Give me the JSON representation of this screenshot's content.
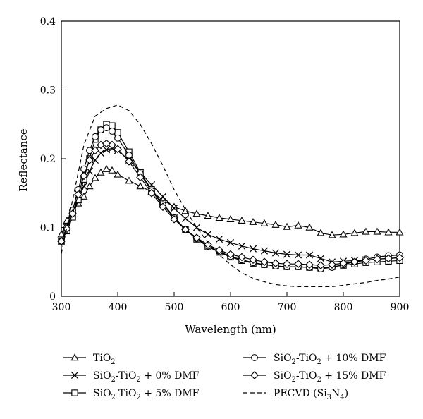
{
  "chart_data": {
    "type": "line",
    "title": "",
    "xlabel": "Wavelength (nm)",
    "ylabel": "Reflectance",
    "xlim": [
      300,
      900
    ],
    "ylim": [
      0,
      0.4
    ],
    "xticks": [
      "300",
      "400",
      "500",
      "600",
      "700",
      "800",
      "900"
    ],
    "yticks": [
      "0",
      "0.1",
      "0.2",
      "0.3",
      "0.4"
    ],
    "grid": false,
    "legend": "below",
    "colors": {
      "line": "#000000"
    },
    "series": [
      {
        "name": "TiO2",
        "legend_main": "TiO",
        "legend_parts": [
          {
            "t": "TiO"
          },
          {
            "t": "2",
            "sub": true
          }
        ],
        "marker": "triangle",
        "dashed": false,
        "x": [
          300,
          310,
          320,
          330,
          340,
          350,
          360,
          370,
          380,
          390,
          400,
          420,
          440,
          460,
          480,
          500,
          520,
          540,
          560,
          580,
          600,
          620,
          640,
          660,
          680,
          700,
          720,
          740,
          760,
          780,
          800,
          820,
          840,
          860,
          880,
          900
        ],
        "y": [
          0.09,
          0.11,
          0.125,
          0.135,
          0.145,
          0.16,
          0.172,
          0.18,
          0.185,
          0.183,
          0.177,
          0.168,
          0.16,
          0.152,
          0.14,
          0.13,
          0.124,
          0.12,
          0.117,
          0.114,
          0.112,
          0.11,
          0.108,
          0.106,
          0.104,
          0.101,
          0.103,
          0.1,
          0.092,
          0.089,
          0.09,
          0.092,
          0.094,
          0.094,
          0.093,
          0.093
        ]
      },
      {
        "name": "SiO2-TiO2 + 0% DMF",
        "legend_parts": [
          {
            "t": "SiO"
          },
          {
            "t": "2",
            "sub": true
          },
          {
            "t": "-TiO"
          },
          {
            "t": "2",
            "sub": true
          },
          {
            "t": " + 0% DMF"
          }
        ],
        "marker": "x",
        "dashed": false,
        "x": [
          300,
          310,
          320,
          330,
          340,
          350,
          360,
          370,
          380,
          390,
          400,
          420,
          440,
          460,
          480,
          500,
          520,
          540,
          560,
          580,
          600,
          620,
          640,
          660,
          680,
          700,
          720,
          740,
          760,
          780,
          800,
          820,
          840,
          860,
          880,
          900
        ],
        "y": [
          0.08,
          0.1,
          0.12,
          0.14,
          0.16,
          0.182,
          0.198,
          0.208,
          0.213,
          0.215,
          0.212,
          0.198,
          0.18,
          0.162,
          0.145,
          0.128,
          0.113,
          0.1,
          0.09,
          0.083,
          0.078,
          0.073,
          0.069,
          0.066,
          0.063,
          0.061,
          0.06,
          0.06,
          0.055,
          0.05,
          0.051,
          0.052,
          0.053,
          0.054,
          0.055,
          0.056
        ]
      },
      {
        "name": "SiO2-TiO2 + 5% DMF",
        "legend_parts": [
          {
            "t": "SiO"
          },
          {
            "t": "2",
            "sub": true
          },
          {
            "t": "-TiO"
          },
          {
            "t": "2",
            "sub": true
          },
          {
            "t": " + 5% DMF"
          }
        ],
        "marker": "square",
        "dashed": false,
        "x": [
          300,
          310,
          320,
          330,
          340,
          350,
          360,
          370,
          380,
          390,
          400,
          420,
          440,
          460,
          480,
          500,
          520,
          540,
          560,
          580,
          600,
          620,
          640,
          660,
          680,
          700,
          720,
          740,
          760,
          780,
          800,
          820,
          840,
          860,
          880,
          900
        ],
        "y": [
          0.08,
          0.095,
          0.115,
          0.14,
          0.17,
          0.2,
          0.228,
          0.242,
          0.25,
          0.248,
          0.238,
          0.21,
          0.18,
          0.155,
          0.135,
          0.115,
          0.097,
          0.083,
          0.072,
          0.064,
          0.057,
          0.052,
          0.048,
          0.046,
          0.044,
          0.043,
          0.043,
          0.042,
          0.041,
          0.043,
          0.045,
          0.047,
          0.049,
          0.05,
          0.051,
          0.052
        ]
      },
      {
        "name": "SiO2-TiO2 + 10% DMF",
        "legend_parts": [
          {
            "t": "SiO"
          },
          {
            "t": "2",
            "sub": true
          },
          {
            "t": "-TiO"
          },
          {
            "t": "2",
            "sub": true
          },
          {
            "t": " + 10% DMF"
          }
        ],
        "marker": "circle",
        "dashed": false,
        "x": [
          300,
          310,
          320,
          330,
          340,
          350,
          360,
          370,
          380,
          390,
          400,
          420,
          440,
          460,
          480,
          500,
          520,
          540,
          560,
          580,
          600,
          620,
          640,
          660,
          680,
          700,
          720,
          740,
          760,
          780,
          800,
          820,
          840,
          860,
          880,
          900
        ],
        "y": [
          0.08,
          0.1,
          0.125,
          0.155,
          0.185,
          0.212,
          0.232,
          0.242,
          0.245,
          0.24,
          0.23,
          0.205,
          0.178,
          0.153,
          0.133,
          0.114,
          0.097,
          0.084,
          0.073,
          0.065,
          0.058,
          0.053,
          0.049,
          0.046,
          0.044,
          0.043,
          0.043,
          0.042,
          0.04,
          0.042,
          0.046,
          0.05,
          0.054,
          0.057,
          0.059,
          0.06
        ]
      },
      {
        "name": "SiO2-TiO2 + 15% DMF",
        "legend_parts": [
          {
            "t": "SiO"
          },
          {
            "t": "2",
            "sub": true
          },
          {
            "t": "-TiO"
          },
          {
            "t": "2",
            "sub": true
          },
          {
            "t": " + 15% DMF"
          }
        ],
        "marker": "diamond",
        "dashed": false,
        "x": [
          300,
          310,
          320,
          330,
          340,
          350,
          360,
          370,
          380,
          390,
          400,
          420,
          440,
          460,
          480,
          500,
          520,
          540,
          560,
          580,
          600,
          620,
          640,
          660,
          680,
          700,
          720,
          740,
          760,
          780,
          800,
          820,
          840,
          860,
          880,
          900
        ],
        "y": [
          0.08,
          0.098,
          0.12,
          0.148,
          0.175,
          0.198,
          0.212,
          0.22,
          0.222,
          0.22,
          0.214,
          0.196,
          0.173,
          0.15,
          0.13,
          0.112,
          0.097,
          0.085,
          0.075,
          0.067,
          0.061,
          0.057,
          0.053,
          0.05,
          0.048,
          0.047,
          0.047,
          0.046,
          0.045,
          0.046,
          0.048,
          0.05,
          0.052,
          0.054,
          0.055,
          0.056
        ]
      },
      {
        "name": "PECVD (Si3N4)",
        "legend_parts": [
          {
            "t": "PECVD (Si"
          },
          {
            "t": "3",
            "sub": true
          },
          {
            "t": "N"
          },
          {
            "t": "4",
            "sub": true
          },
          {
            "t": ")"
          }
        ],
        "marker": "none",
        "dashed": true,
        "x": [
          300,
          320,
          340,
          360,
          380,
          400,
          420,
          440,
          460,
          480,
          500,
          520,
          540,
          560,
          580,
          600,
          620,
          640,
          660,
          680,
          700,
          720,
          740,
          760,
          780,
          800,
          820,
          840,
          860,
          880,
          900
        ],
        "y": [
          0.062,
          0.14,
          0.22,
          0.262,
          0.273,
          0.278,
          0.27,
          0.25,
          0.222,
          0.19,
          0.155,
          0.126,
          0.1,
          0.078,
          0.06,
          0.046,
          0.034,
          0.026,
          0.021,
          0.017,
          0.015,
          0.014,
          0.014,
          0.014,
          0.014,
          0.016,
          0.018,
          0.02,
          0.023,
          0.025,
          0.028
        ]
      }
    ]
  }
}
